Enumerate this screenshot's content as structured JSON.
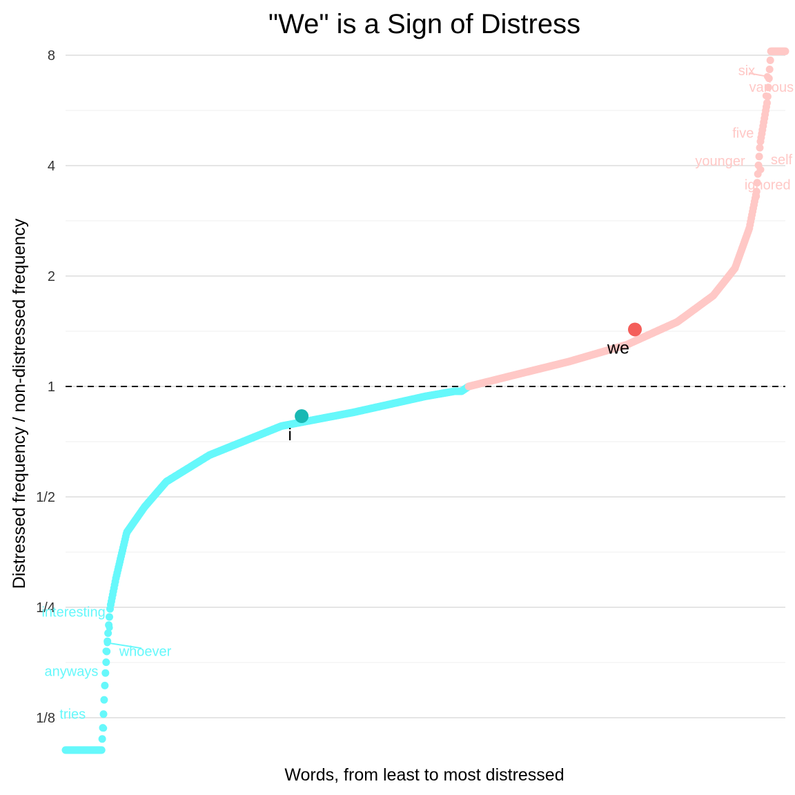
{
  "chart_data": {
    "type": "scatter",
    "title": "\"We\" is a Sign of Distress",
    "xlabel": "Words, from least to most distressed",
    "ylabel": "Distressed frequency / non-distressed frequency",
    "y_scale": "log2",
    "y_ticks": [
      {
        "value": 0.125,
        "label": "1/8"
      },
      {
        "value": 0.25,
        "label": "1/4"
      },
      {
        "value": 0.5,
        "label": "1/2"
      },
      {
        "value": 1,
        "label": "1"
      },
      {
        "value": 2,
        "label": "2"
      },
      {
        "value": 4,
        "label": "4"
      },
      {
        "value": 8,
        "label": "8"
      }
    ],
    "ylim": [
      0.1,
      8.2
    ],
    "reference_line": {
      "value": 1,
      "style": "dashed"
    },
    "grid": true,
    "colors": {
      "less_distressed": "#66f8fb",
      "more_distressed": "#ffc8c6",
      "highlight_i": "#19b8b3",
      "highlight_we": "#f45e5a",
      "reference": "#000000"
    },
    "curve_anchors": [
      [
        0,
        0.102
      ],
      [
        0.05,
        0.102
      ],
      [
        0.052,
        0.119
      ],
      [
        0.055,
        0.16
      ],
      [
        0.058,
        0.2
      ],
      [
        0.062,
        0.25
      ],
      [
        0.07,
        0.3
      ],
      [
        0.085,
        0.4
      ],
      [
        0.11,
        0.47
      ],
      [
        0.14,
        0.55
      ],
      [
        0.2,
        0.65
      ],
      [
        0.3,
        0.78
      ],
      [
        0.4,
        0.85
      ],
      [
        0.5,
        0.94
      ],
      [
        0.54,
        0.97
      ],
      [
        0.55,
        0.97
      ],
      [
        0.56,
        1.0
      ],
      [
        0.62,
        1.07
      ],
      [
        0.7,
        1.17
      ],
      [
        0.78,
        1.3
      ],
      [
        0.85,
        1.5
      ],
      [
        0.9,
        1.77
      ],
      [
        0.93,
        2.1
      ],
      [
        0.95,
        2.7
      ],
      [
        0.96,
        3.4
      ],
      [
        0.965,
        4.6
      ],
      [
        0.975,
        6.0
      ],
      [
        0.98,
        8.2
      ],
      [
        1.0,
        8.2
      ]
    ],
    "highlighted_words": [
      {
        "word": "i",
        "x": 0.328,
        "y": 0.83,
        "group": "less"
      },
      {
        "word": "we",
        "x": 0.791,
        "y": 1.43,
        "group": "more"
      }
    ],
    "labeled_words": [
      {
        "word": "tries",
        "x": 0.053,
        "y": 0.117,
        "group": "less"
      },
      {
        "word": "anyways",
        "x": 0.056,
        "y": 0.19,
        "group": "less"
      },
      {
        "word": "whoever",
        "x": 0.058,
        "y": 0.2,
        "group": "less"
      },
      {
        "word": "interesting",
        "x": 0.061,
        "y": 0.22,
        "group": "less"
      },
      {
        "word": "ignored",
        "x": 0.96,
        "y": 3.3,
        "group": "more"
      },
      {
        "word": "younger",
        "x": 0.965,
        "y": 3.9,
        "group": "more"
      },
      {
        "word": "self",
        "x": 0.966,
        "y": 3.9,
        "group": "more"
      },
      {
        "word": "five",
        "x": 0.972,
        "y": 5.5,
        "group": "more"
      },
      {
        "word": "various",
        "x": 0.973,
        "y": 6.2,
        "group": "more"
      },
      {
        "word": "six",
        "x": 0.975,
        "y": 7.0,
        "group": "more"
      }
    ]
  }
}
